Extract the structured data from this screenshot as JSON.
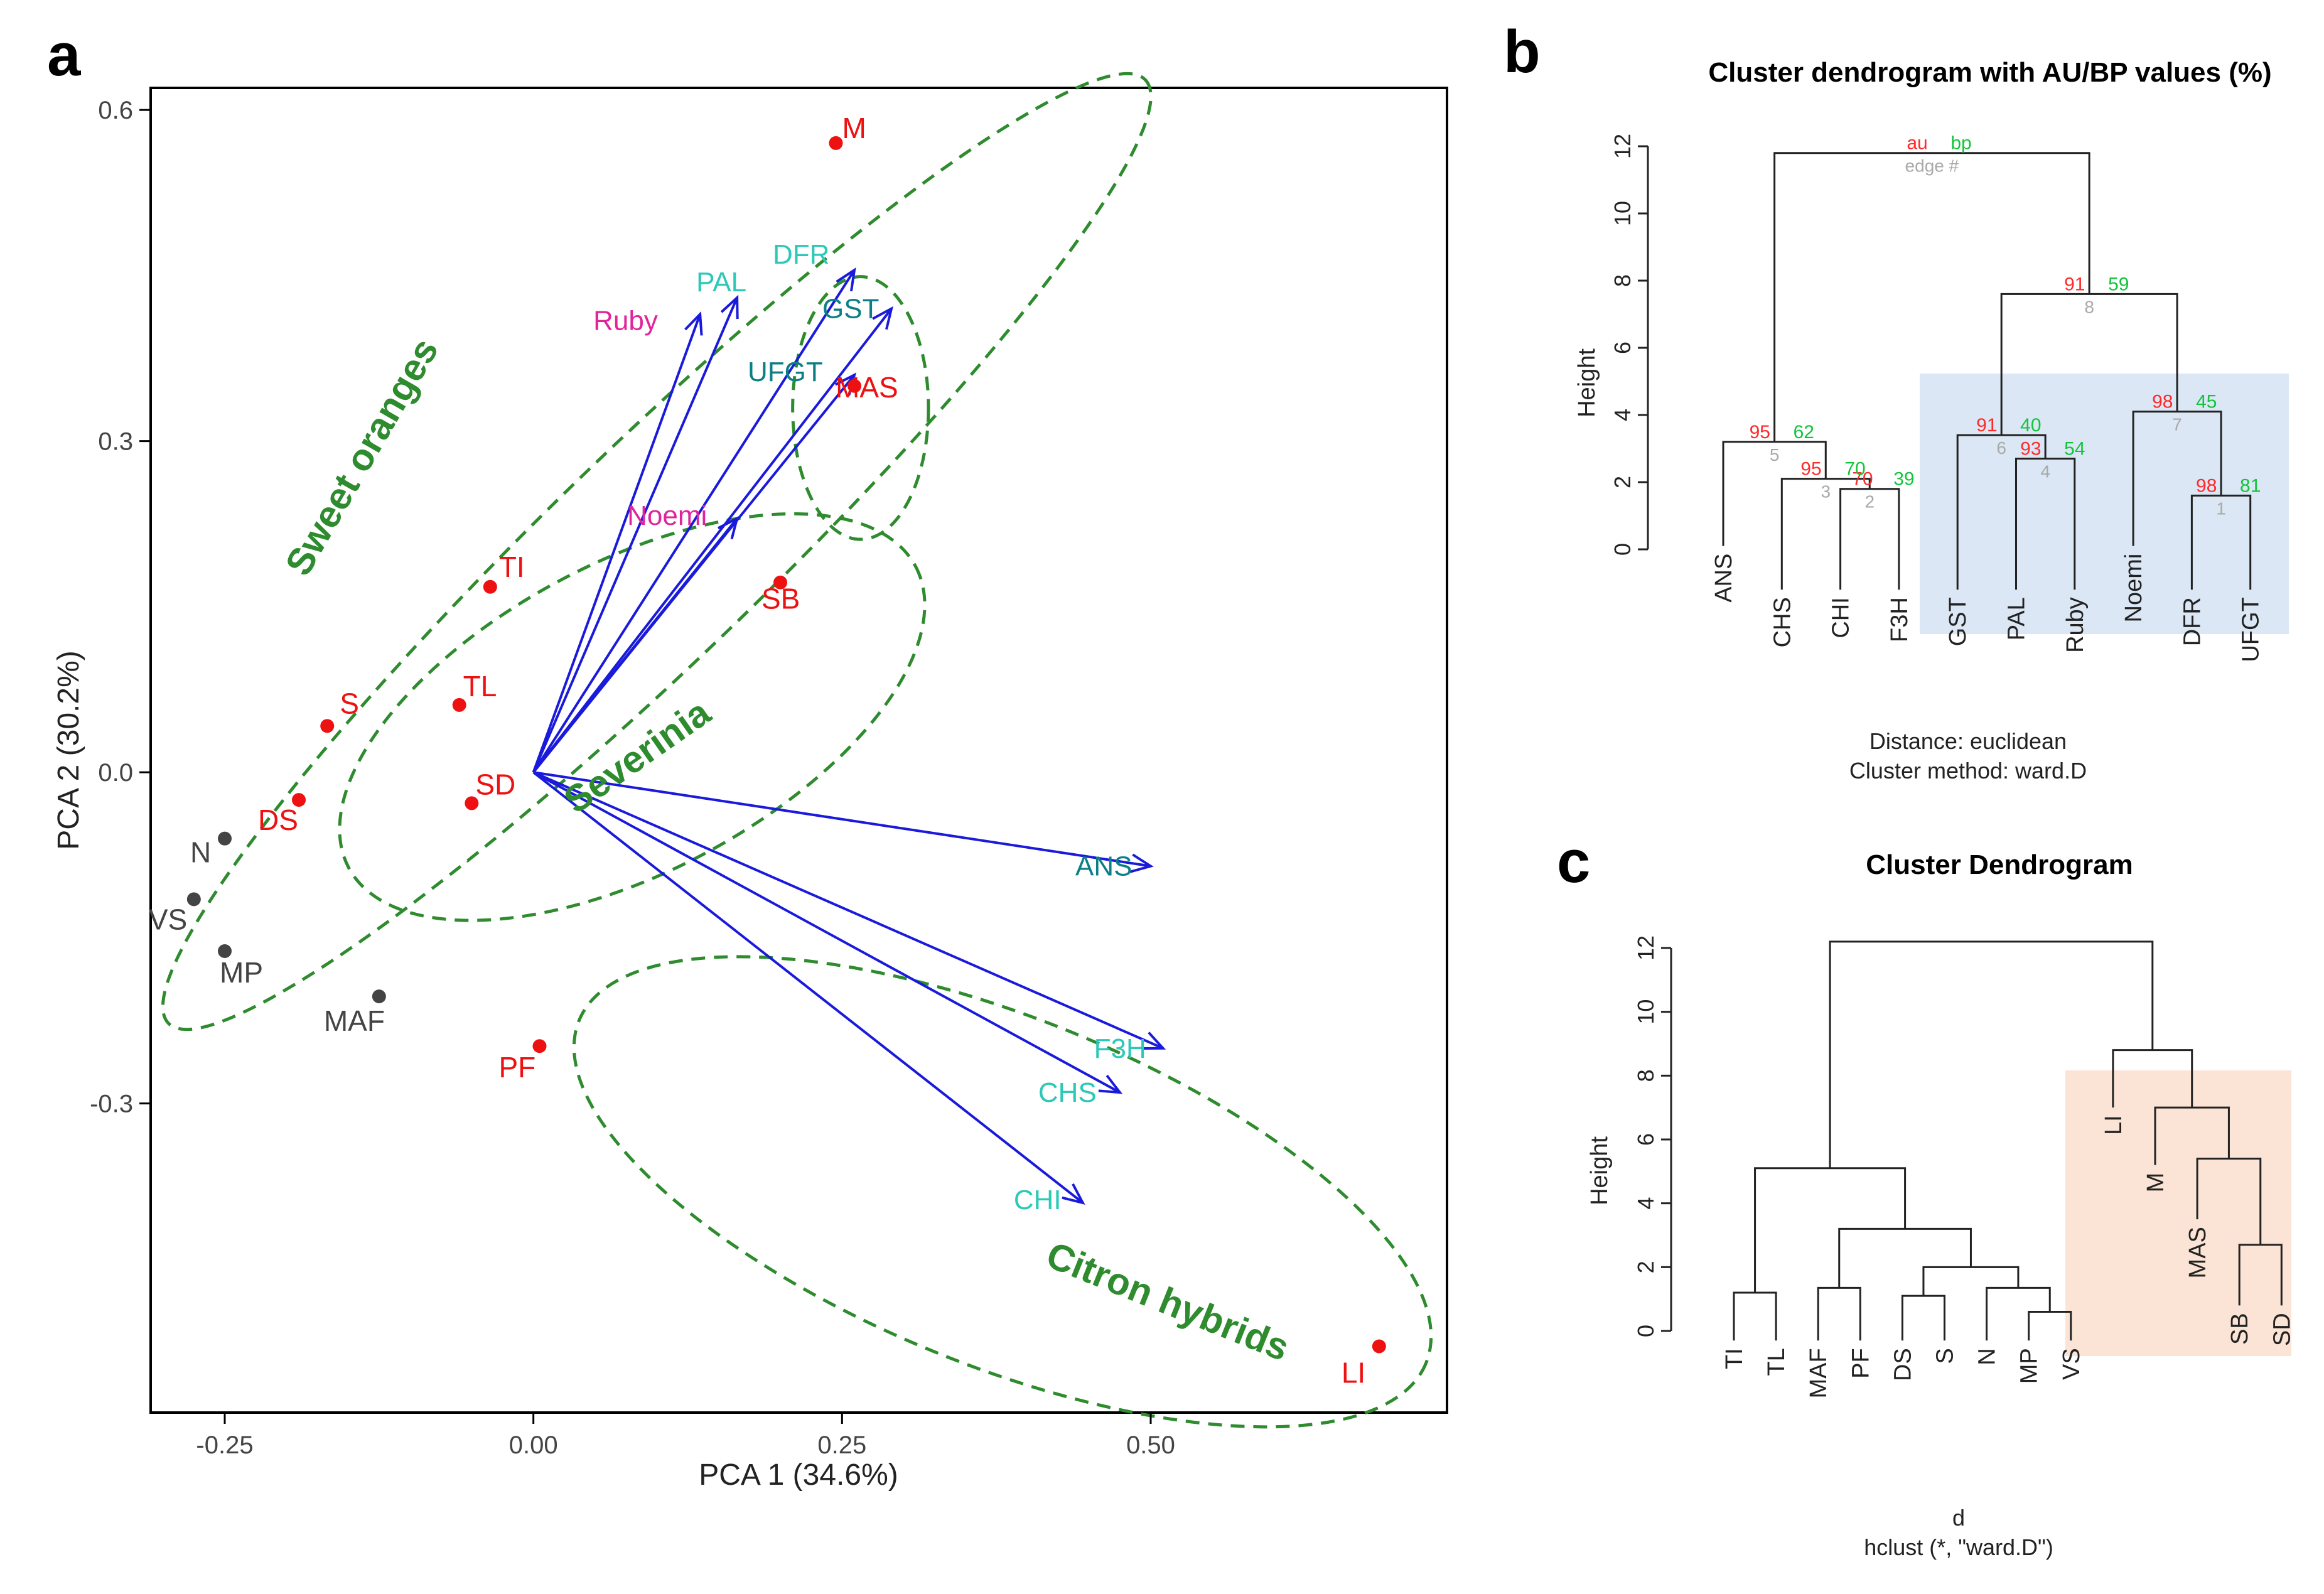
{
  "figure": {
    "panel_a_letter": "a",
    "panel_b_letter": "b",
    "panel_c_letter": "c"
  },
  "colors": {
    "citrus": "#ee1111",
    "other": "#444444",
    "arrow": "#1a1adc",
    "gene_teal": "#0b7f86",
    "gene_cyan": "#2cc8b8",
    "gene_pink": "#e0249a",
    "ellipse": "#2e8b2e",
    "au": "#ff2a2a",
    "bp": "#11c43a",
    "edge": "#a8a8a8",
    "shade_b": "#dbe7f4",
    "shade_c": "#fbe4d5"
  },
  "chart_data": [
    {
      "type": "scatter",
      "title": "",
      "xlabel": "PCA 1 (34.6%)",
      "ylabel": "PCA 2 (30.2%)",
      "xlim": [
        -0.31,
        0.74
      ],
      "ylim": [
        -0.58,
        0.62
      ],
      "x_ticks": [
        -0.25,
        0.0,
        0.25,
        0.5
      ],
      "x_tick_labels": [
        "-0.25",
        "0.00",
        "0.25",
        "0.50"
      ],
      "y_ticks": [
        -0.3,
        0.0,
        0.3,
        0.6
      ],
      "y_tick_labels": [
        "-0.3",
        "0.0",
        "0.3",
        "0.6"
      ],
      "points": [
        {
          "label": "M",
          "x": 0.245,
          "y": 0.57,
          "group": "red",
          "dx": 10,
          "dy": -8
        },
        {
          "label": "MAS",
          "x": 0.26,
          "y": 0.35,
          "group": "red",
          "dx": -30,
          "dy": 18
        },
        {
          "label": "TI",
          "x": -0.035,
          "y": 0.168,
          "group": "red",
          "dx": 14,
          "dy": -16
        },
        {
          "label": "SB",
          "x": 0.2,
          "y": 0.172,
          "group": "red",
          "dx": -30,
          "dy": 42
        },
        {
          "label": "TL",
          "x": -0.06,
          "y": 0.061,
          "group": "red",
          "dx": 6,
          "dy": -14
        },
        {
          "label": "S",
          "x": -0.167,
          "y": 0.042,
          "group": "red",
          "dx": 20,
          "dy": -20
        },
        {
          "label": "SD",
          "x": -0.05,
          "y": -0.028,
          "group": "red",
          "dx": 6,
          "dy": -14
        },
        {
          "label": "DS",
          "x": -0.19,
          "y": -0.025,
          "group": "red",
          "dx": -65,
          "dy": 48
        },
        {
          "label": "PF",
          "x": 0.005,
          "y": -0.248,
          "group": "red",
          "dx": -65,
          "dy": 50
        },
        {
          "label": "LI",
          "x": 0.685,
          "y": -0.52,
          "group": "red",
          "dx": -60,
          "dy": 58
        },
        {
          "label": "N",
          "x": -0.25,
          "y": -0.06,
          "group": "grey",
          "dx": -55,
          "dy": 38
        },
        {
          "label": "VS",
          "x": -0.275,
          "y": -0.115,
          "group": "grey",
          "dx": -72,
          "dy": 48
        },
        {
          "label": "MP",
          "x": -0.25,
          "y": -0.162,
          "group": "grey",
          "dx": -8,
          "dy": 50
        },
        {
          "label": "MAF",
          "x": -0.125,
          "y": -0.203,
          "group": "grey",
          "dx": -88,
          "dy": 55
        }
      ],
      "loadings": [
        {
          "label": "PAL",
          "x": 0.165,
          "y": 0.43,
          "color": "cyan",
          "dx": -65,
          "dy": -10
        },
        {
          "label": "DFR",
          "x": 0.26,
          "y": 0.455,
          "color": "cyan",
          "dx": -130,
          "dy": -10
        },
        {
          "label": "GST",
          "x": 0.29,
          "y": 0.42,
          "color": "teal",
          "dx": -110,
          "dy": 15
        },
        {
          "label": "Ruby",
          "x": 0.135,
          "y": 0.415,
          "color": "pink",
          "dx": -170,
          "dy": 25
        },
        {
          "label": "UFGT",
          "x": 0.26,
          "y": 0.36,
          "color": "teal",
          "dx": -170,
          "dy": 10
        },
        {
          "label": "Noemi",
          "x": 0.165,
          "y": 0.23,
          "color": "pink",
          "dx": -175,
          "dy": 10
        },
        {
          "label": "ANS",
          "x": 0.5,
          "y": -0.085,
          "color": "teal",
          "dx": -120,
          "dy": 15
        },
        {
          "label": "F3H",
          "x": 0.51,
          "y": -0.25,
          "color": "cyan",
          "dx": -110,
          "dy": 15
        },
        {
          "label": "CHS",
          "x": 0.475,
          "y": -0.29,
          "color": "cyan",
          "dx": -130,
          "dy": 15
        },
        {
          "label": "CHI",
          "x": 0.445,
          "y": -0.39,
          "color": "cyan",
          "dx": -110,
          "dy": 10
        }
      ],
      "group_labels": [
        {
          "text": "Sweet oranges",
          "x": -0.13,
          "y": 0.28,
          "rotate": -60
        },
        {
          "text": "Severinia",
          "x": 0.09,
          "y": 0.005,
          "rotate": -35
        },
        {
          "text": "Citron hybrids",
          "x": 0.51,
          "y": -0.49,
          "rotate": 22
        }
      ],
      "ellipses": [
        {
          "cx": 0.1,
          "cy": 0.2,
          "rx": 0.55,
          "ry": 0.055,
          "angle": 44
        },
        {
          "cx": 0.265,
          "cy": 0.33,
          "rx": 0.055,
          "ry": 0.068,
          "angle": 0
        },
        {
          "cx": 0.08,
          "cy": 0.05,
          "rx": 0.26,
          "ry": 0.08,
          "angle": 28
        },
        {
          "cx": 0.38,
          "cy": -0.38,
          "rx": 0.37,
          "ry": 0.09,
          "angle": -22
        }
      ]
    },
    {
      "type": "dendrogram",
      "title": "Cluster dendrogram with AU/BP values (%)",
      "ylabel": "Height",
      "ylim": [
        0,
        12
      ],
      "y_ticks": [
        0,
        2,
        4,
        6,
        8,
        10,
        12
      ],
      "y_tick_labels": [
        "0",
        "2",
        "4",
        "6",
        "8",
        "10",
        "12"
      ],
      "leaves": [
        "ANS",
        "CHS",
        "CHI",
        "F3H",
        "GST",
        "PAL",
        "Ruby",
        "Noemi",
        "DFR",
        "UFGT"
      ],
      "leaf_bottom": [
        0.1,
        -1.2,
        -1.2,
        -1.2,
        -1.2,
        -1.2,
        -1.2,
        0.1,
        -1.2,
        -1.2
      ],
      "merges": [
        {
          "a": "CHI",
          "b": "F3H",
          "h": 1.8,
          "au": "70",
          "bp": "39",
          "edge": "2",
          "au_dx": -28,
          "bp_dx": 38
        },
        {
          "a": "CHS",
          "b": 1,
          "h": 2.1,
          "au": "95",
          "bp": "70",
          "edge": "3",
          "au_dx": -40,
          "bp_dx": 30
        },
        {
          "a": "ANS",
          "b": 2,
          "h": 3.2,
          "au": "95",
          "bp": "62",
          "edge": "5",
          "au_dx": -40,
          "bp_dx": 30
        },
        {
          "a": "DFR",
          "b": "UFGT",
          "h": 1.6,
          "au": "98",
          "bp": "81",
          "edge": "1",
          "au_dx": -40,
          "bp_dx": 30
        },
        {
          "a": "PAL",
          "b": "Ruby",
          "h": 2.7,
          "au": "93",
          "bp": "54",
          "edge": "4",
          "au_dx": -40,
          "bp_dx": 30
        },
        {
          "a": "GST",
          "b": 5,
          "h": 3.4,
          "au": "91",
          "bp": "40",
          "edge": "6",
          "au_dx": -40,
          "bp_dx": 30
        },
        {
          "a": "Noemi",
          "b": 4,
          "h": 4.1,
          "au": "98",
          "bp": "45",
          "edge": "7",
          "au_dx": -40,
          "bp_dx": 30
        },
        {
          "a": 6,
          "b": 7,
          "h": 7.6,
          "au": "91",
          "bp": "59",
          "edge": "8",
          "au_dx": -40,
          "bp_dx": 30
        },
        {
          "a": 3,
          "b": 8,
          "h": 11.8,
          "au": "au",
          "bp": "bp",
          "edge": "edge #",
          "au_dx": -40,
          "bp_dx": 30
        }
      ],
      "distance_text": "Distance:  euclidean",
      "method_text": "Cluster method: ward.D"
    },
    {
      "type": "dendrogram",
      "title": "Cluster Dendrogram",
      "ylabel": "Height",
      "ylim": [
        0,
        12
      ],
      "y_ticks": [
        0,
        2,
        4,
        6,
        8,
        10,
        12
      ],
      "y_tick_labels": [
        "0",
        "2",
        "4",
        "6",
        "8",
        "10",
        "12"
      ],
      "leaves": [
        "TI",
        "TL",
        "MAF",
        "PF",
        "DS",
        "S",
        "N",
        "MP",
        "VS",
        "LI",
        "M",
        "MAS",
        "SB",
        "SD"
      ],
      "leaf_bottom": [
        -0.3,
        -0.3,
        -0.3,
        -0.3,
        -0.3,
        -0.3,
        -0.3,
        -0.3,
        -0.3,
        7.0,
        5.2,
        3.5,
        0.8,
        0.8
      ],
      "merges": [
        {
          "a": "TI",
          "b": "TL",
          "h": 1.2
        },
        {
          "a": "MAF",
          "b": "PF",
          "h": 1.35
        },
        {
          "a": "DS",
          "b": "S",
          "h": 1.1
        },
        {
          "a": "MP",
          "b": "VS",
          "h": 0.6
        },
        {
          "a": "N",
          "b": 4,
          "h": 1.35
        },
        {
          "a": 3,
          "b": 5,
          "h": 2.0
        },
        {
          "a": 2,
          "b": 6,
          "h": 3.2
        },
        {
          "a": 1,
          "b": 7,
          "h": 5.1
        },
        {
          "a": "SB",
          "b": "SD",
          "h": 2.7
        },
        {
          "a": "MAS",
          "b": 9,
          "h": 5.4
        },
        {
          "a": "M",
          "b": 10,
          "h": 7.0
        },
        {
          "a": "LI",
          "b": 11,
          "h": 8.8
        },
        {
          "a": 8,
          "b": 12,
          "h": 12.2
        }
      ],
      "xlabel": "d",
      "subtitle": "hclust (*, \"ward.D\")"
    }
  ]
}
